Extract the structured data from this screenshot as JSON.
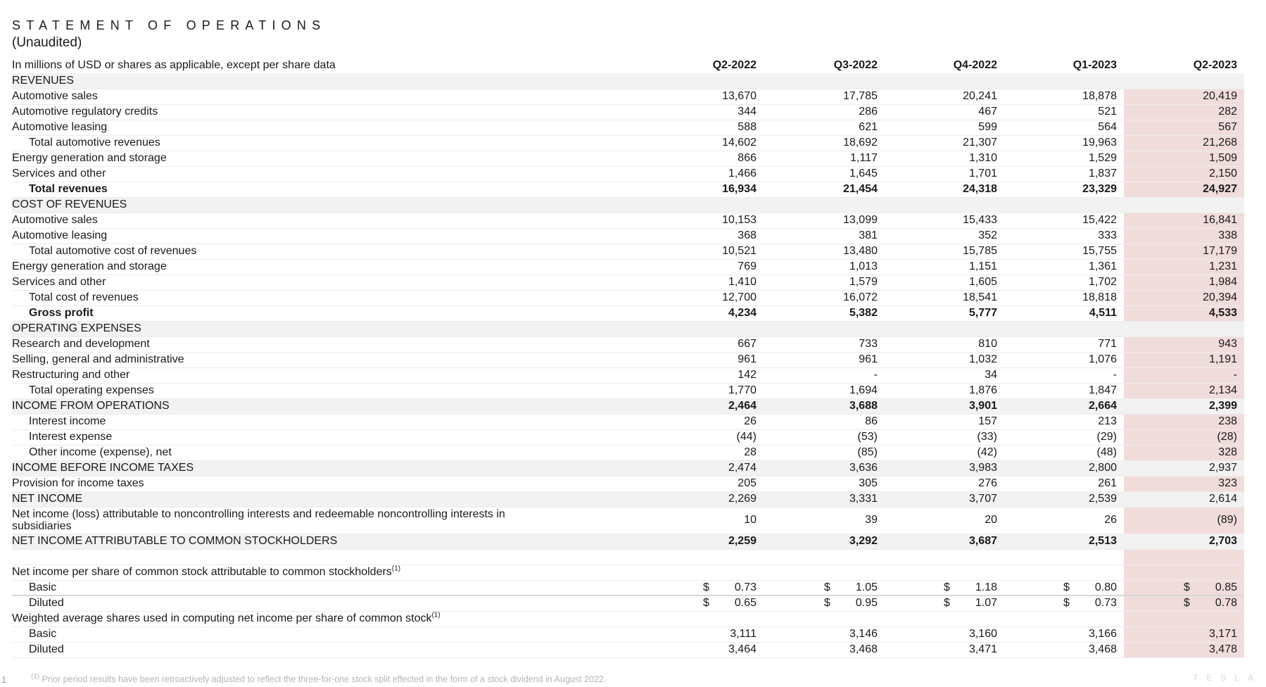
{
  "title": "STATEMENT OF OPERATIONS",
  "subtitle": "(Unaudited)",
  "header": {
    "label": "In millions of USD or shares as applicable, except per share data",
    "columns": [
      "Q2-2022",
      "Q3-2022",
      "Q4-2022",
      "Q1-2023",
      "Q2-2023"
    ]
  },
  "highlight_color": "#f1dcdc",
  "rows": [
    {
      "label": "REVENUES",
      "style": "gray",
      "values": []
    },
    {
      "label": "Automotive sales",
      "values": [
        "13,670",
        "17,785",
        "20,241",
        "18,878",
        "20,419"
      ]
    },
    {
      "label": "Automotive regulatory credits",
      "values": [
        "344",
        "286",
        "467",
        "521",
        "282"
      ]
    },
    {
      "label": "Automotive leasing",
      "values": [
        "588",
        "621",
        "599",
        "564",
        "567"
      ]
    },
    {
      "label": "Total automotive revenues",
      "indent": true,
      "values": [
        "14,602",
        "18,692",
        "21,307",
        "19,963",
        "21,268"
      ]
    },
    {
      "label": "Energy generation and storage",
      "values": [
        "866",
        "1,117",
        "1,310",
        "1,529",
        "1,509"
      ]
    },
    {
      "label": "Services and other",
      "values": [
        "1,466",
        "1,645",
        "1,701",
        "1,837",
        "2,150"
      ]
    },
    {
      "label": "Total revenues",
      "indent": true,
      "style": "bold",
      "values": [
        "16,934",
        "21,454",
        "24,318",
        "23,329",
        "24,927"
      ]
    },
    {
      "label": "COST OF REVENUES",
      "style": "gray",
      "values": []
    },
    {
      "label": "Automotive sales",
      "values": [
        "10,153",
        "13,099",
        "15,433",
        "15,422",
        "16,841"
      ]
    },
    {
      "label": "Automotive leasing",
      "values": [
        "368",
        "381",
        "352",
        "333",
        "338"
      ]
    },
    {
      "label": "Total automotive cost of revenues",
      "indent": true,
      "values": [
        "10,521",
        "13,480",
        "15,785",
        "15,755",
        "17,179"
      ]
    },
    {
      "label": "Energy generation and storage",
      "values": [
        "769",
        "1,013",
        "1,151",
        "1,361",
        "1,231"
      ]
    },
    {
      "label": "Services and other",
      "values": [
        "1,410",
        "1,579",
        "1,605",
        "1,702",
        "1,984"
      ]
    },
    {
      "label": "Total cost of revenues",
      "indent": true,
      "values": [
        "12,700",
        "16,072",
        "18,541",
        "18,818",
        "20,394"
      ]
    },
    {
      "label": "Gross profit",
      "indent": true,
      "style": "bold",
      "values": [
        "4,234",
        "5,382",
        "5,777",
        "4,511",
        "4,533"
      ]
    },
    {
      "label": "OPERATING EXPENSES",
      "style": "gray",
      "values": []
    },
    {
      "label": "Research and development",
      "values": [
        "667",
        "733",
        "810",
        "771",
        "943"
      ]
    },
    {
      "label": "Selling, general and administrative",
      "values": [
        "961",
        "961",
        "1,032",
        "1,076",
        "1,191"
      ]
    },
    {
      "label": "Restructuring and other",
      "values": [
        "142",
        "-",
        "34",
        "-",
        "-"
      ]
    },
    {
      "label": "Total operating expenses",
      "indent": true,
      "values": [
        "1,770",
        "1,694",
        "1,876",
        "1,847",
        "2,134"
      ]
    },
    {
      "label": "INCOME FROM OPERATIONS",
      "style": "gray boldnum",
      "values": [
        "2,464",
        "3,688",
        "3,901",
        "2,664",
        "2,399"
      ]
    },
    {
      "label": "Interest income",
      "indent": true,
      "values": [
        "26",
        "86",
        "157",
        "213",
        "238"
      ]
    },
    {
      "label": "Interest expense",
      "indent": true,
      "values": [
        "(44)",
        "(53)",
        "(33)",
        "(29)",
        "(28)"
      ]
    },
    {
      "label": "Other income (expense), net",
      "indent": true,
      "values": [
        "28",
        "(85)",
        "(42)",
        "(48)",
        "328"
      ]
    },
    {
      "label": "INCOME BEFORE INCOME TAXES",
      "style": "gray",
      "values": [
        "2,474",
        "3,636",
        "3,983",
        "2,800",
        "2,937"
      ]
    },
    {
      "label": "Provision for income taxes",
      "values": [
        "205",
        "305",
        "276",
        "261",
        "323"
      ]
    },
    {
      "label": "NET INCOME",
      "style": "gray",
      "values": [
        "2,269",
        "3,331",
        "3,707",
        "2,539",
        "2,614"
      ]
    },
    {
      "label": "Net income (loss) attributable to noncontrolling interests and redeemable noncontrolling interests in subsidiaries",
      "style": "two",
      "values": [
        "10",
        "39",
        "20",
        "26",
        "(89)"
      ]
    },
    {
      "label": "NET INCOME ATTRIBUTABLE TO COMMON STOCKHOLDERS",
      "style": "gray boldnum",
      "values": [
        "2,259",
        "3,292",
        "3,687",
        "2,513",
        "2,703"
      ]
    },
    {
      "label": "",
      "style": "blank",
      "values": []
    },
    {
      "label": "Net income per share of common stock attributable to common stockholders",
      "sup": "(1)",
      "values": []
    },
    {
      "label": "Basic",
      "indent": true,
      "dollar": "$",
      "values": [
        "0.73",
        "1.05",
        "1.18",
        "0.80",
        "0.85"
      ]
    },
    {
      "label": "Diluted",
      "indent": true,
      "dollar": "$",
      "style": "sep",
      "values": [
        "0.65",
        "0.95",
        "1.07",
        "0.73",
        "0.78"
      ]
    },
    {
      "label": "Weighted average shares used in computing net income per share of common stock",
      "sup": "(1)",
      "values": []
    },
    {
      "label": "Basic",
      "indent": true,
      "values": [
        "3,111",
        "3,146",
        "3,160",
        "3,166",
        "3,171"
      ]
    },
    {
      "label": "Diluted",
      "indent": true,
      "values": [
        "3,464",
        "3,468",
        "3,471",
        "3,468",
        "3,478"
      ]
    }
  ],
  "footer": {
    "page_number": "1",
    "footnote_sup": "(1)",
    "footnote": "Prior period results have been retroactively adjusted to reflect the three-for-one stock split effected in the form of a stock dividend in August 2022.",
    "logo": "TESLA"
  }
}
